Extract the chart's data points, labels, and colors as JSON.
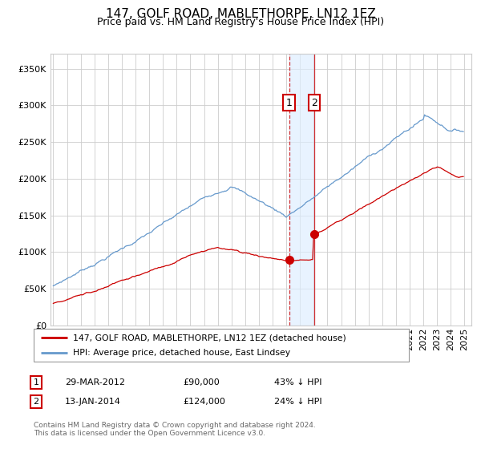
{
  "title": "147, GOLF ROAD, MABLETHORPE, LN12 1EZ",
  "subtitle": "Price paid vs. HM Land Registry's House Price Index (HPI)",
  "legend_line1": "147, GOLF ROAD, MABLETHORPE, LN12 1EZ (detached house)",
  "legend_line2": "HPI: Average price, detached house, East Lindsey",
  "footnote1": "Contains HM Land Registry data © Crown copyright and database right 2024.",
  "footnote2": "This data is licensed under the Open Government Licence v3.0.",
  "transaction1_label": "1",
  "transaction1_date": "29-MAR-2012",
  "transaction1_price": "£90,000",
  "transaction1_hpi": "43% ↓ HPI",
  "transaction2_label": "2",
  "transaction2_date": "13-JAN-2014",
  "transaction2_price": "£124,000",
  "transaction2_hpi": "24% ↓ HPI",
  "ylim": [
    0,
    370000
  ],
  "hpi_color": "#6699cc",
  "price_color": "#cc0000",
  "grid_color": "#cccccc",
  "background_color": "#ffffff",
  "title_fontsize": 11,
  "subtitle_fontsize": 9,
  "axis_fontsize": 8,
  "transaction1_x": 2012.22,
  "transaction2_x": 2014.04,
  "transaction1_y": 90000,
  "transaction2_y": 124000,
  "marker_size": 7,
  "xlim_left": 1994.8,
  "xlim_right": 2025.5
}
